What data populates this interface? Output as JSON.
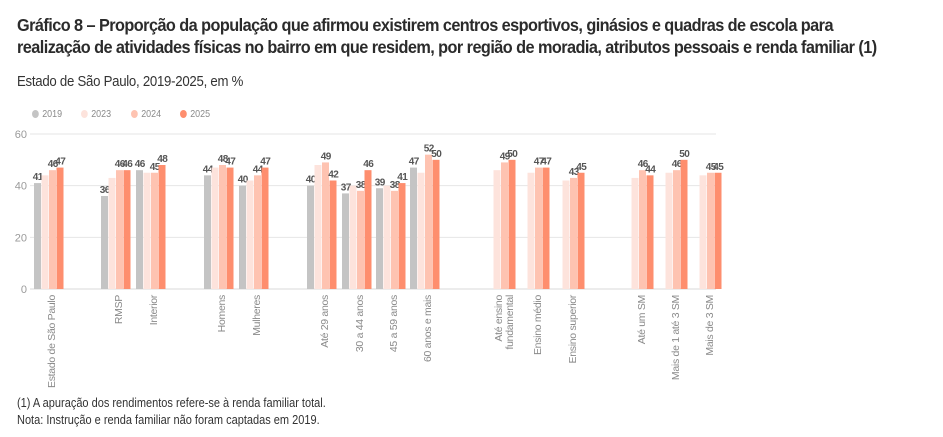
{
  "header": {
    "title": "Gráfico 8 – Proporção da população que afirmou existirem centros esportivos, ginásios e quadras de escola para realização de atividades físicas no bairro em que residem, por região de moradia, atributos pessoais e renda familiar (1)",
    "subtitle": "Estado de São Paulo, 2019-2025, em %"
  },
  "footnotes": {
    "note1": "(1) A apuração dos rendimentos refere-se à renda familiar total.",
    "note2": "Nota: Instrução e renda familiar não foram captadas em 2019."
  },
  "chart_data": {
    "type": "bar",
    "title": "Gráfico 8 – Proporção da população que afirmou existirem centros esportivos, ginásios e quadras de escola para realização de atividades físicas no bairro em que residem, por região de moradia, atributos pessoais e renda familiar (1)",
    "subtitle": "Estado de São Paulo, 2019-2025, em %",
    "xlabel": "",
    "ylabel": "",
    "ylim": [
      0,
      60
    ],
    "yticks": [
      0,
      20,
      40,
      60
    ],
    "grid": true,
    "legend_position": "top-left",
    "categories": [
      "Estado de São Paulo",
      "RMSP",
      "Interior",
      "Homens",
      "Mulheres",
      "Até 29 anos",
      "30 a 44 anos",
      "45 a 59 anos",
      "60 anos e mais",
      "Até ensino fundamental",
      "Ensino médio",
      "Ensino superior",
      "Até um SM",
      "Mais de 1 até 3 SM",
      "Mais de 3 SM"
    ],
    "category_groups": [
      [
        0
      ],
      [
        1,
        2
      ],
      [
        3,
        4
      ],
      [
        5,
        6,
        7,
        8
      ],
      [
        9,
        10,
        11
      ],
      [
        12,
        13,
        14
      ]
    ],
    "series": [
      {
        "name": "2019",
        "color": "#c4c4c4",
        "values": [
          41,
          36,
          46,
          44,
          40,
          40,
          37,
          39,
          47,
          null,
          null,
          null,
          null,
          null,
          null
        ],
        "labeled": true
      },
      {
        "name": "2023",
        "color": "#fde3dc",
        "values": [
          44,
          43,
          45,
          47,
          42,
          48,
          40,
          40,
          45,
          46,
          45,
          42,
          43,
          45,
          44
        ],
        "labeled": false
      },
      {
        "name": "2024",
        "color": "#fec3b1",
        "values": [
          46,
          46,
          45,
          48,
          44,
          49,
          38,
          38,
          52,
          49,
          47,
          43,
          46,
          46,
          45
        ],
        "labeled": true
      },
      {
        "name": "2025",
        "color": "#fe8e6e",
        "values": [
          47,
          46,
          48,
          47,
          47,
          42,
          46,
          41,
          50,
          50,
          47,
          45,
          44,
          50,
          45
        ],
        "labeled": true
      }
    ]
  }
}
